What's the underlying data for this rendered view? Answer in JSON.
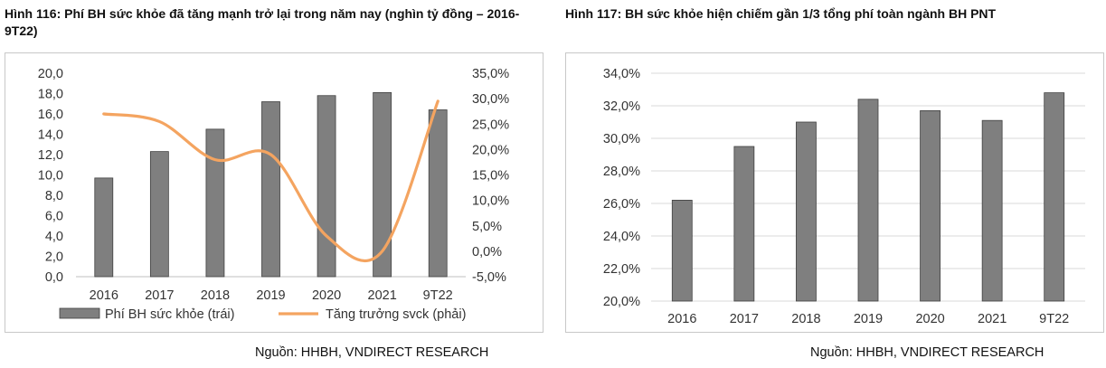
{
  "colors": {
    "bar": "#7f7f7f",
    "bar_border": "#404040",
    "line": "#f4a460",
    "grid": "#d9d9d9"
  },
  "left": {
    "title": "Hình 116: Phí BH sức khỏe đã tăng mạnh trở lại trong năm nay (nghìn tỷ đồng – 2016-9T22)",
    "source": "Nguồn: HHBH, VNDIRECT RESEARCH"
  },
  "right": {
    "title": "Hình 117:  BH sức khỏe hiện chiếm gần 1/3 tổng phí toàn ngành BH PNT",
    "source": "Nguồn: HHBH, VNDIRECT RESEARCH"
  },
  "chart_data": [
    {
      "type": "bar+line",
      "categories": [
        "2016",
        "2017",
        "2018",
        "2019",
        "2020",
        "2021",
        "9T22"
      ],
      "series": [
        {
          "name": "Phí BH sức khỏe (trái)",
          "type": "bar",
          "axis": "left",
          "values": [
            9.7,
            12.3,
            14.5,
            17.2,
            17.8,
            18.1,
            16.4
          ]
        },
        {
          "name": "Tăng trưởng svck (phải)",
          "type": "line",
          "axis": "right",
          "smooth": true,
          "values": [
            27.0,
            25.5,
            18.0,
            19.0,
            3.0,
            0.0,
            29.5
          ]
        }
      ],
      "ylim": [
        0,
        20
      ],
      "yticks": [
        "0,0",
        "2,0",
        "4,0",
        "6,0",
        "8,0",
        "10,0",
        "12,0",
        "14,0",
        "16,0",
        "18,0",
        "20,0"
      ],
      "y2lim": [
        -5,
        35
      ],
      "y2ticks": [
        "-5,0%",
        "0,0%",
        "5,0%",
        "10,0%",
        "15,0%",
        "20,0%",
        "25,0%",
        "30,0%",
        "35,0%"
      ],
      "grid": false,
      "legend": "bottom"
    },
    {
      "type": "bar",
      "categories": [
        "2016",
        "2017",
        "2018",
        "2019",
        "2020",
        "2021",
        "9T22"
      ],
      "values": [
        26.2,
        29.5,
        31.0,
        32.4,
        31.7,
        31.1,
        32.8
      ],
      "ylim": [
        20,
        34
      ],
      "yticks": [
        "20,0%",
        "22,0%",
        "24,0%",
        "26,0%",
        "28,0%",
        "30,0%",
        "32,0%",
        "34,0%"
      ],
      "grid": true,
      "legend": "none"
    }
  ]
}
